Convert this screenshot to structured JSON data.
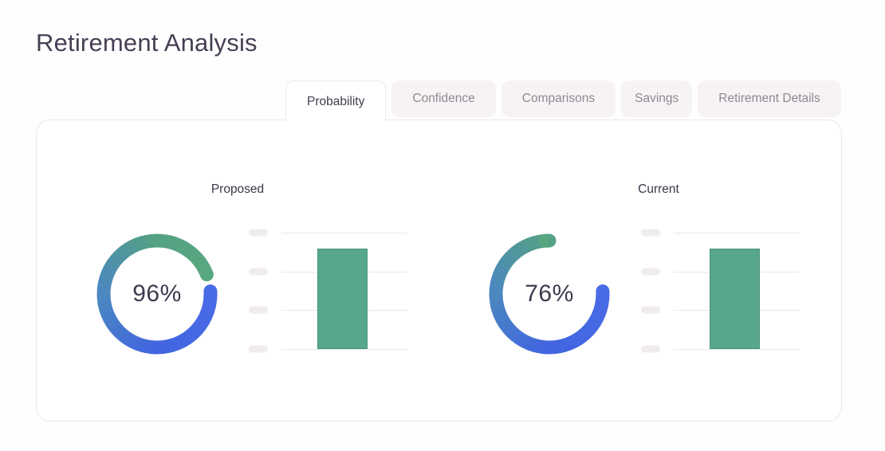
{
  "header": {
    "title": "Retirement Analysis"
  },
  "tabs": [
    {
      "label": "Probability",
      "active": true
    },
    {
      "label": "Confidence",
      "active": false
    },
    {
      "label": "Comparisons",
      "active": false
    },
    {
      "label": "Savings",
      "active": false
    },
    {
      "label": "Retirement Details",
      "active": false
    }
  ],
  "chart_data": {
    "type": "gauge+bar",
    "panels": [
      {
        "label": "Proposed",
        "gauge_percent": 96,
        "gauge_display": "96%",
        "bar_fraction": 0.86
      },
      {
        "label": "Current",
        "gauge_percent": 76,
        "gauge_display": "76%",
        "bar_fraction": 0.86
      }
    ],
    "bar_gridline_count": 4,
    "legend": "none",
    "colors": {
      "gauge_gradient_stops": [
        "#4a6be6",
        "#4164e0",
        "#4b87c0",
        "#54a184",
        "#58a87f"
      ],
      "bar": "#56a78c",
      "gridline": "#e9e8ea",
      "tick_pill": "#f0ebed",
      "value_text": "#3f394e",
      "title_text": "#483f54",
      "tab_active_text": "#423c50",
      "tab_inactive_text": "#8e8894",
      "tab_inactive_bg": "#f7f3f4"
    }
  }
}
